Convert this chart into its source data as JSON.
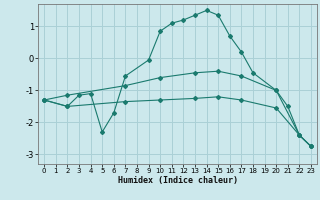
{
  "xlabel": "Humidex (Indice chaleur)",
  "background_color": "#cce8ec",
  "grid_color": "#aad0d6",
  "line_color": "#1a7a6e",
  "xlim": [
    -0.5,
    23.5
  ],
  "ylim": [
    -3.3,
    1.7
  ],
  "yticks": [
    -3,
    -2,
    -1,
    0,
    1
  ],
  "xticks": [
    0,
    1,
    2,
    3,
    4,
    5,
    6,
    7,
    8,
    9,
    10,
    11,
    12,
    13,
    14,
    15,
    16,
    17,
    18,
    19,
    20,
    21,
    22,
    23
  ],
  "series": [
    {
      "x": [
        0,
        2,
        3,
        4,
        5,
        6,
        7,
        9,
        10,
        11,
        12,
        13,
        14,
        15,
        16,
        17,
        18,
        20,
        21,
        22,
        23
      ],
      "y": [
        -1.3,
        -1.5,
        -1.15,
        -1.1,
        -2.3,
        -1.7,
        -0.55,
        -0.05,
        0.85,
        1.1,
        1.2,
        1.35,
        1.5,
        1.35,
        0.7,
        0.2,
        -0.45,
        -1.0,
        -1.5,
        -2.4,
        -2.75
      ]
    },
    {
      "x": [
        0,
        2,
        7,
        10,
        13,
        15,
        17,
        20,
        22,
        23
      ],
      "y": [
        -1.3,
        -1.15,
        -0.85,
        -0.6,
        -0.45,
        -0.4,
        -0.55,
        -1.0,
        -2.4,
        -2.75
      ]
    },
    {
      "x": [
        0,
        2,
        7,
        10,
        13,
        15,
        17,
        20,
        22,
        23
      ],
      "y": [
        -1.3,
        -1.5,
        -1.35,
        -1.3,
        -1.25,
        -1.2,
        -1.3,
        -1.55,
        -2.4,
        -2.75
      ]
    }
  ]
}
